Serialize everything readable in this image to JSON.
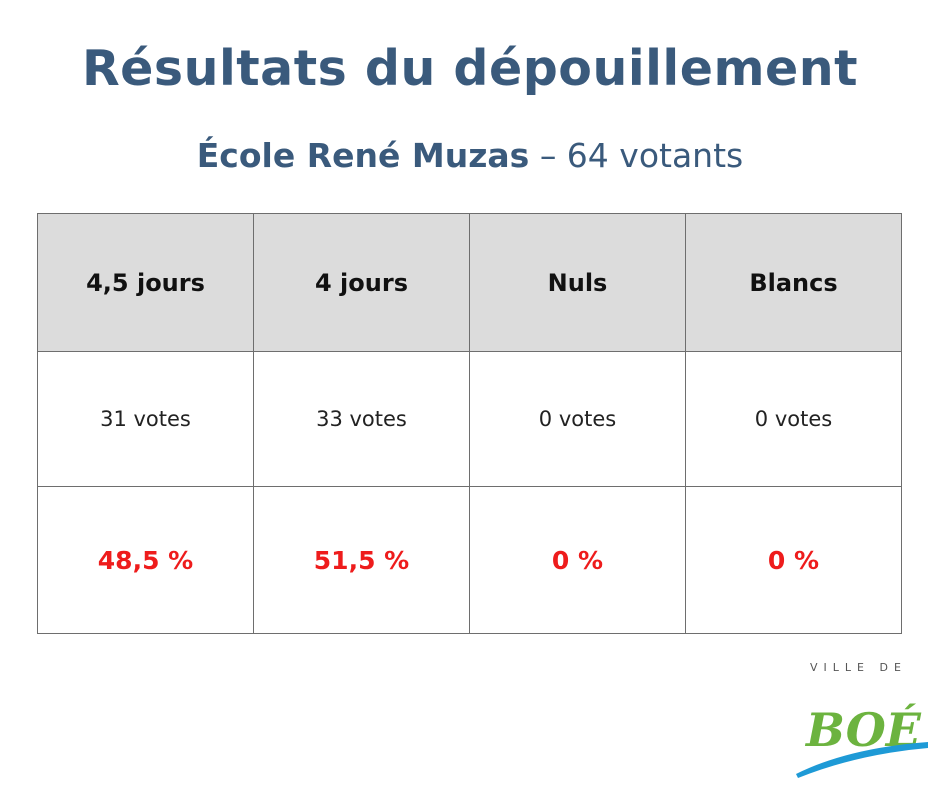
{
  "title": "Résultats du dépouillement",
  "subtitle": {
    "school": "École René Muzas",
    "rest": " – 64 votants"
  },
  "table": {
    "headers": [
      "4,5 jours",
      "4 jours",
      "Nuls",
      "Blancs"
    ],
    "votes": [
      "31 votes",
      "33 votes",
      "0 votes",
      "0 votes"
    ],
    "percents": [
      "48,5 %",
      "51,5 %",
      "0 %",
      "0 %"
    ]
  },
  "logo": {
    "top_text": "VILLE DE",
    "name": "BOÉ"
  },
  "colors": {
    "title": "#3a5a7c",
    "percent": "#ee1c1c",
    "header_bg": "#dcdcdc",
    "logo_green": "#6cb33f",
    "logo_blue": "#1e9ad6"
  }
}
